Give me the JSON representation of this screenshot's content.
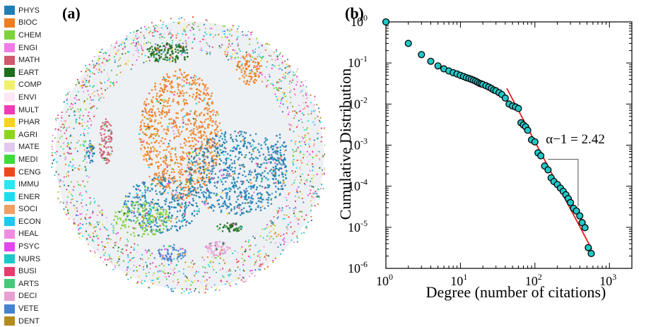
{
  "panel_a": {
    "label": "(a)",
    "legend": [
      {
        "label": "PHYS",
        "color": "#1f7fb4"
      },
      {
        "label": "BIOC",
        "color": "#f07d1e"
      },
      {
        "label": "CHEM",
        "color": "#7ed23a"
      },
      {
        "label": "ENGI",
        "color": "#f07ce6"
      },
      {
        "label": "MATH",
        "color": "#cf5a6e"
      },
      {
        "label": "EART",
        "color": "#1e6e1e"
      },
      {
        "label": "COMP",
        "color": "#f0f06e"
      },
      {
        "label": "ENVI",
        "color": "#fce8f4"
      },
      {
        "label": "MULT",
        "color": "#f03cb8"
      },
      {
        "label": "PHAR",
        "color": "#f8d21e"
      },
      {
        "label": "AGRI",
        "color": "#8ed41e"
      },
      {
        "label": "MATE",
        "color": "#e2c8ee"
      },
      {
        "label": "MEDI",
        "color": "#3cdc3c"
      },
      {
        "label": "CENG",
        "color": "#f0461e"
      },
      {
        "label": "IMMU",
        "color": "#28e8f0"
      },
      {
        "label": "ENER",
        "color": "#1edcf0"
      },
      {
        "label": "SOCI",
        "color": "#f0a064"
      },
      {
        "label": "ECON",
        "color": "#1ec8f0"
      },
      {
        "label": "HEAL",
        "color": "#f08ce0"
      },
      {
        "label": "PSYC",
        "color": "#e646f0"
      },
      {
        "label": "NURS",
        "color": "#1ec8c8"
      },
      {
        "label": "BUSI",
        "color": "#e63c6e"
      },
      {
        "label": "ARTS",
        "color": "#46c87a"
      },
      {
        "label": "DECI",
        "color": "#e8a0d2"
      },
      {
        "label": "VETE",
        "color": "#4682d2"
      },
      {
        "label": "DENT",
        "color": "#b48c1e"
      }
    ]
  },
  "chart_data": {
    "type": "scatter",
    "label": "(b)",
    "xlabel": "Degree (number of citations)",
    "ylabel": "Cumulative Distribution",
    "xscale": "log",
    "yscale": "log",
    "xlim": [
      1,
      2000
    ],
    "ylim": [
      1e-06,
      1
    ],
    "x_ticks": [
      {
        "value": 1,
        "label": "1",
        "exp": "0"
      },
      {
        "value": 10,
        "label": "1",
        "exp": "1"
      },
      {
        "value": 100,
        "label": "1",
        "exp": "2"
      },
      {
        "value": 1000,
        "label": "1",
        "exp": "3"
      }
    ],
    "y_ticks": [
      {
        "value": 1,
        "label": "10",
        "exp": "0"
      },
      {
        "value": 0.1,
        "label": "10",
        "exp": "-1"
      },
      {
        "value": 0.01,
        "label": "10",
        "exp": "-2"
      },
      {
        "value": 0.001,
        "label": "10",
        "exp": "-3"
      },
      {
        "value": 0.0001,
        "label": "10",
        "exp": "-4"
      },
      {
        "value": 1e-05,
        "label": "10",
        "exp": "-5"
      },
      {
        "value": 1e-06,
        "label": "10",
        "exp": "-6"
      }
    ],
    "annotation": "α−1 = 2.42",
    "marker_color": "#20c8c8",
    "fit_color": "#e02020",
    "fit_line": {
      "x": [
        42,
        580
      ],
      "y": [
        0.024,
        2.9e-06
      ]
    },
    "points": {
      "x": [
        1,
        2,
        3,
        4,
        5,
        6,
        7,
        8,
        9,
        10,
        11,
        12,
        13,
        14,
        15,
        16,
        17,
        18,
        19,
        20,
        22,
        24,
        26,
        28,
        30,
        33,
        36,
        40,
        45,
        50,
        55,
        60,
        65,
        70,
        75,
        80,
        90,
        100,
        110,
        120,
        135,
        150,
        165,
        180,
        200,
        220,
        240,
        260,
        280,
        300,
        330,
        360,
        400,
        430,
        470,
        520,
        570
      ],
      "y": [
        1,
        0.3,
        0.16,
        0.11,
        0.085,
        0.072,
        0.064,
        0.058,
        0.054,
        0.05,
        0.047,
        0.044,
        0.042,
        0.04,
        0.038,
        0.036,
        0.034,
        0.032,
        0.031,
        0.03,
        0.028,
        0.026,
        0.024,
        0.022,
        0.021,
        0.019,
        0.017,
        0.014,
        0.01,
        0.009,
        0.0085,
        0.0078,
        0.0035,
        0.0031,
        0.0028,
        0.0023,
        0.00135,
        0.0012,
        0.00065,
        0.00055,
        0.00031,
        0.00025,
        0.00016,
        0.00013,
        0.00011,
        9e-05,
        7.5e-05,
        6.2e-05,
        5e-05,
        4e-05,
        2.9e-05,
        2.5e-05,
        1.9e-05,
        1.3e-05,
        9.8e-06,
        3.2e-06,
        2.3e-06
      ]
    }
  }
}
